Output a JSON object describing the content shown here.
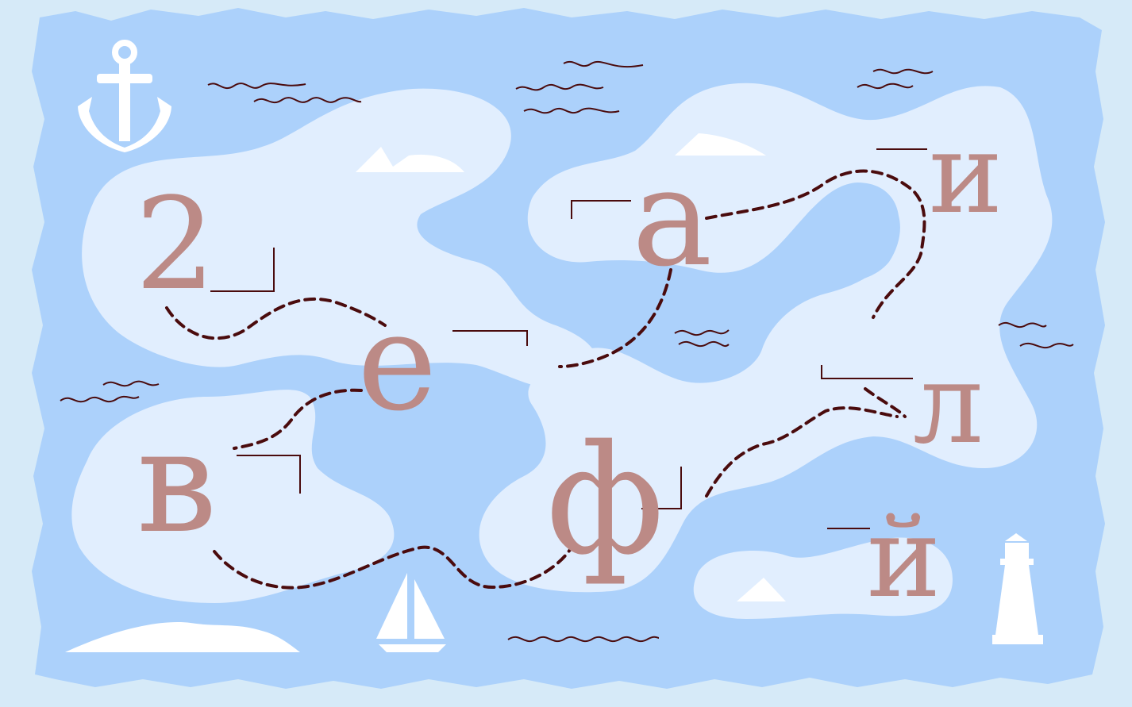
{
  "letters": {
    "two": "2",
    "e": "е",
    "v": "в",
    "a": "а",
    "i": "и",
    "l": "л",
    "f": "ф",
    "ii": "й"
  },
  "colors": {
    "frame": "#d6eaf8",
    "parchment": "#acd1fb",
    "land": "#e1eefe",
    "ink": "#4a0b0d",
    "letter": "#bc8a86",
    "white": "#ffffff"
  },
  "icons": [
    "anchor-icon",
    "lighthouse-icon",
    "sailboat-icon",
    "waves-icon",
    "mountain-icon"
  ]
}
